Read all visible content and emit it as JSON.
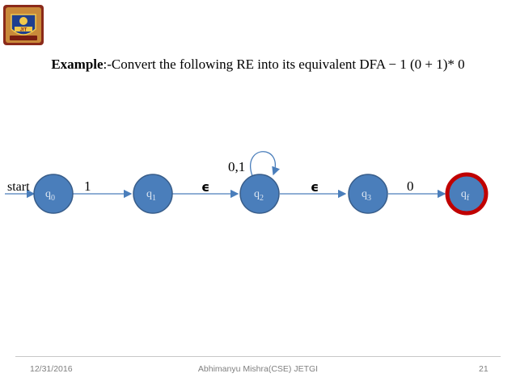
{
  "header": {
    "title_bold": "Example",
    "title_rest": ":-Convert the following RE into its equivalent DFA − 1 (0 + 1)* 0"
  },
  "diagram": {
    "start_label": "start",
    "states": [
      {
        "base": "q",
        "sub": "0",
        "final": false
      },
      {
        "base": "q",
        "sub": "1",
        "final": false
      },
      {
        "base": "q",
        "sub": "2",
        "final": false
      },
      {
        "base": "q",
        "sub": "3",
        "final": false
      },
      {
        "base": "q",
        "sub": "f",
        "final": true
      }
    ],
    "transitions": [
      {
        "from": "q0",
        "to": "q1",
        "label": "1"
      },
      {
        "from": "q1",
        "to": "q2",
        "label": "ϵ"
      },
      {
        "from": "q2",
        "to": "q3",
        "label": "ϵ"
      },
      {
        "from": "q3",
        "to": "qf",
        "label": "0"
      },
      {
        "from": "q2",
        "to": "q2",
        "label": "0,1"
      }
    ],
    "colors": {
      "state_fill": "#4a7ebb",
      "state_stroke": "#385d8a",
      "final_ring": "#c00000",
      "state_text": "#dce6f2",
      "arrow": "#4a7ebb"
    }
  },
  "footer": {
    "date": "12/31/2016",
    "author": "Abhimanyu Mishra(CSE) JETGI",
    "page": "21"
  }
}
